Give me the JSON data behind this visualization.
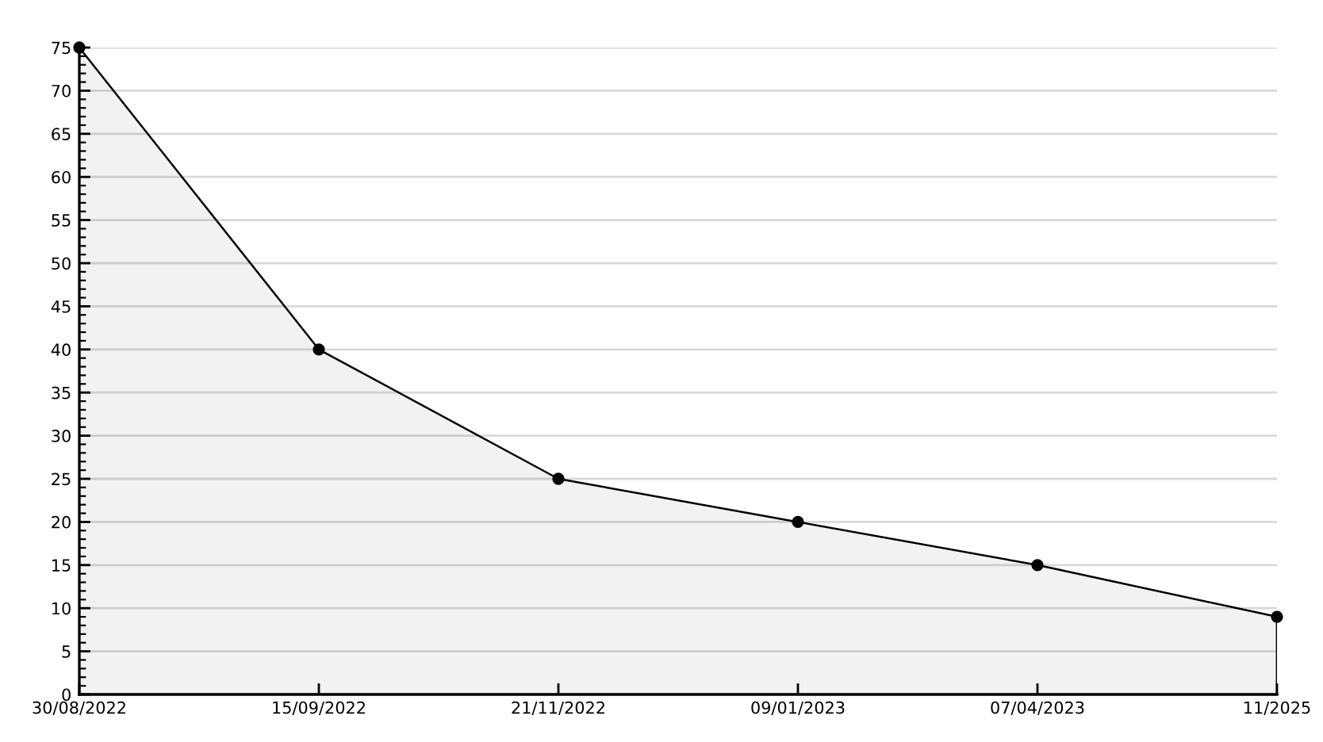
{
  "chart_data": {
    "type": "area",
    "categories": [
      "30/08/2022",
      "15/09/2022",
      "21/11/2022",
      "09/01/2023",
      "07/04/2023",
      "11/2025"
    ],
    "series": [
      {
        "color": "#000000",
        "values": [
          75,
          40,
          25,
          20,
          15,
          9
        ]
      }
    ],
    "ylim": [
      0,
      75
    ],
    "yticks": [
      0,
      5,
      10,
      15,
      20,
      25,
      30,
      35,
      40,
      45,
      50,
      55,
      60,
      65,
      70,
      75
    ],
    "grid": "y",
    "marker": "circle",
    "line_style": "solid",
    "legend": false
  }
}
